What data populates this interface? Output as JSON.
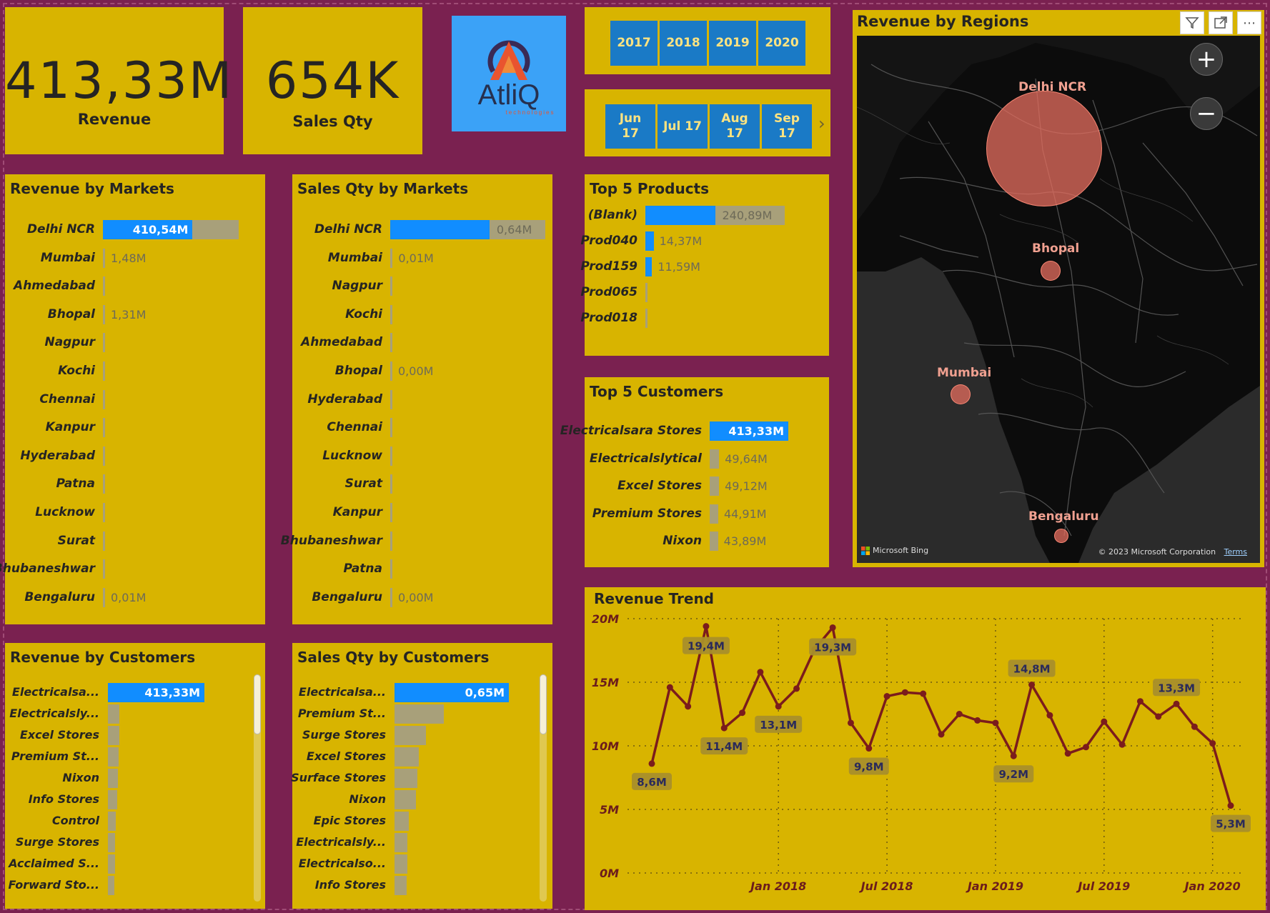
{
  "kpi": {
    "revenue": {
      "value": "413,33M",
      "label": "Revenue"
    },
    "sales_qty": {
      "value": "654K",
      "label": "Sales Qty"
    }
  },
  "logo": {
    "name": "AtliQ",
    "tagline": "technologies"
  },
  "years": [
    "2017",
    "2018",
    "2019",
    "2020"
  ],
  "months": [
    {
      "line1": "Jun",
      "line2": "17"
    },
    {
      "line1": "Jul 17",
      "line2": ""
    },
    {
      "line1": "Aug",
      "line2": "17"
    },
    {
      "line1": "Sep",
      "line2": "17"
    }
  ],
  "colors": {
    "background": "#7a2150",
    "card": "#d8b400",
    "bar_blue": "#118dff",
    "bar_gray": "#a8a07a",
    "line": "#7b1c1c",
    "slicer": "#1a7ac6"
  },
  "revenue_by_markets": {
    "title": "Revenue by Markets",
    "rows": [
      {
        "label": "Delhi NCR",
        "value": 410.54,
        "display": "410,54M"
      },
      {
        "label": "Mumbai",
        "value": 1.48,
        "display": "1,48M"
      },
      {
        "label": "Ahmedabad",
        "value": 1.35,
        "display": ""
      },
      {
        "label": "Bhopal",
        "value": 1.31,
        "display": "1,31M"
      },
      {
        "label": "Nagpur",
        "value": 0.5,
        "display": ""
      },
      {
        "label": "Kochi",
        "value": 0.15,
        "display": ""
      },
      {
        "label": "Chennai",
        "value": 0.13,
        "display": ""
      },
      {
        "label": "Kanpur",
        "value": 0.12,
        "display": ""
      },
      {
        "label": "Hyderabad",
        "value": 0.05,
        "display": ""
      },
      {
        "label": "Patna",
        "value": 0.04,
        "display": ""
      },
      {
        "label": "Lucknow",
        "value": 0.03,
        "display": ""
      },
      {
        "label": "Surat",
        "value": 0.02,
        "display": ""
      },
      {
        "label": "Bhubaneshwar",
        "value": 0.02,
        "display": ""
      },
      {
        "label": "Bengaluru",
        "value": 0.01,
        "display": "0,01M"
      }
    ]
  },
  "sales_qty_by_markets": {
    "title": "Sales Qty by Markets",
    "rows": [
      {
        "label": "Delhi NCR",
        "value": 0.64,
        "display": "0,64M"
      },
      {
        "label": "Mumbai",
        "value": 0.01,
        "display": "0,01M"
      },
      {
        "label": "Nagpur",
        "value": 0.009,
        "display": ""
      },
      {
        "label": "Kochi",
        "value": 0.009,
        "display": ""
      },
      {
        "label": "Ahmedabad",
        "value": 0.007,
        "display": ""
      },
      {
        "label": "Bhopal",
        "value": 0.004,
        "display": "0,00M"
      },
      {
        "label": "Hyderabad",
        "value": 0.003,
        "display": ""
      },
      {
        "label": "Chennai",
        "value": 0.002,
        "display": ""
      },
      {
        "label": "Lucknow",
        "value": 0.0015,
        "display": ""
      },
      {
        "label": "Surat",
        "value": 0.001,
        "display": ""
      },
      {
        "label": "Kanpur",
        "value": 0.001,
        "display": ""
      },
      {
        "label": "Bhubaneshwar",
        "value": 0.0008,
        "display": ""
      },
      {
        "label": "Patna",
        "value": 0.0006,
        "display": ""
      },
      {
        "label": "Bengaluru",
        "value": 0.0004,
        "display": "0,00M"
      }
    ]
  },
  "top_products": {
    "title": "Top 5 Products",
    "rows": [
      {
        "label": "(Blank)",
        "value": 240.89,
        "display": "240,89M"
      },
      {
        "label": "Prod040",
        "value": 14.37,
        "display": "14,37M"
      },
      {
        "label": "Prod159",
        "value": 11.59,
        "display": "11,59M"
      },
      {
        "label": "Prod065",
        "value": 3.0,
        "display": ""
      },
      {
        "label": "Prod018",
        "value": 2.5,
        "display": ""
      }
    ]
  },
  "top_customers": {
    "title": "Top 5 Customers",
    "rows": [
      {
        "label": "Electricalsara Stores",
        "value": 413.33,
        "display": "413,33M"
      },
      {
        "label": "Electricalslytical",
        "value": 49.64,
        "display": "49,64M"
      },
      {
        "label": "Excel Stores",
        "value": 49.12,
        "display": "49,12M"
      },
      {
        "label": "Premium Stores",
        "value": 44.91,
        "display": "44,91M"
      },
      {
        "label": "Nixon",
        "value": 43.89,
        "display": "43,89M"
      }
    ]
  },
  "revenue_by_customers": {
    "title": "Revenue by Customers",
    "rows": [
      {
        "label": "Electricalsa...",
        "value": 413.33,
        "display": "413,33M"
      },
      {
        "label": "Electricalsly...",
        "value": 49.64,
        "display": ""
      },
      {
        "label": "Excel Stores",
        "value": 49.12,
        "display": ""
      },
      {
        "label": "Premium St...",
        "value": 44.91,
        "display": ""
      },
      {
        "label": "Nixon",
        "value": 43.89,
        "display": ""
      },
      {
        "label": "Info Stores",
        "value": 40.0,
        "display": ""
      },
      {
        "label": "Control",
        "value": 35.0,
        "display": ""
      },
      {
        "label": "Surge Stores",
        "value": 32.0,
        "display": ""
      },
      {
        "label": "Acclaimed S...",
        "value": 30.0,
        "display": ""
      },
      {
        "label": "Forward Sto...",
        "value": 28.0,
        "display": ""
      }
    ]
  },
  "sales_qty_by_customers": {
    "title": "Sales Qty by Customers",
    "rows": [
      {
        "label": "Electricalsa...",
        "value": 0.65,
        "display": "0,65M"
      },
      {
        "label": "Premium St...",
        "value": 0.28,
        "display": ""
      },
      {
        "label": "Surge Stores",
        "value": 0.18,
        "display": ""
      },
      {
        "label": "Excel Stores",
        "value": 0.14,
        "display": ""
      },
      {
        "label": "Surface Stores",
        "value": 0.13,
        "display": ""
      },
      {
        "label": "Nixon",
        "value": 0.12,
        "display": ""
      },
      {
        "label": "Epic Stores",
        "value": 0.08,
        "display": ""
      },
      {
        "label": "Electricalsly...",
        "value": 0.075,
        "display": ""
      },
      {
        "label": "Electricalso...",
        "value": 0.075,
        "display": ""
      },
      {
        "label": "Info Stores",
        "value": 0.07,
        "display": ""
      }
    ]
  },
  "revenue_by_regions": {
    "title": "Revenue by Regions",
    "cities": [
      {
        "name": "Delhi NCR",
        "size": "large"
      },
      {
        "name": "Bhopal",
        "size": "small"
      },
      {
        "name": "Mumbai",
        "size": "small"
      },
      {
        "name": "Bengaluru",
        "size": "tiny"
      }
    ],
    "bing": "Microsoft Bing",
    "copyright": "© 2023 Microsoft Corporation",
    "terms": "Terms",
    "zoom_in": "+",
    "zoom_out": "−"
  },
  "chart_data": {
    "type": "line",
    "title": "Revenue Trend",
    "xlabel": "",
    "ylabel": "",
    "ylim": [
      0,
      20
    ],
    "y_ticks": [
      "0M",
      "5M",
      "10M",
      "15M",
      "20M"
    ],
    "x_ticks": [
      {
        "label": "Jan 2018",
        "index": 7
      },
      {
        "label": "Jul 2018",
        "index": 13
      },
      {
        "label": "Jan 2019",
        "index": 19
      },
      {
        "label": "Jul 2019",
        "index": 25
      },
      {
        "label": "Jan 2020",
        "index": 31
      }
    ],
    "series": [
      {
        "name": "Revenue",
        "values": [
          8.6,
          14.6,
          13.1,
          19.4,
          11.4,
          12.6,
          15.8,
          13.1,
          14.5,
          17.6,
          19.3,
          11.8,
          9.8,
          13.9,
          14.2,
          14.1,
          10.9,
          12.5,
          12.0,
          11.8,
          9.2,
          14.8,
          12.4,
          9.4,
          9.9,
          11.9,
          10.1,
          13.5,
          12.3,
          13.3,
          11.5,
          10.2,
          5.3
        ]
      }
    ],
    "data_labels": [
      {
        "index": 0,
        "text": "8,6M"
      },
      {
        "index": 3,
        "text": "19,4M"
      },
      {
        "index": 4,
        "text": "11,4M"
      },
      {
        "index": 7,
        "text": "13,1M"
      },
      {
        "index": 10,
        "text": "19,3M"
      },
      {
        "index": 12,
        "text": "9,8M"
      },
      {
        "index": 20,
        "text": "9,2M"
      },
      {
        "index": 21,
        "text": "14,8M"
      },
      {
        "index": 29,
        "text": "13,3M"
      },
      {
        "index": 32,
        "text": "5,3M"
      }
    ]
  }
}
